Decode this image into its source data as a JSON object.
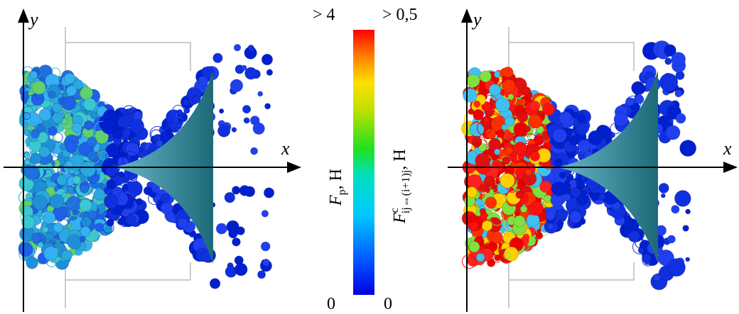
{
  "left_panel": {
    "axis_y": "y",
    "axis_x": "x"
  },
  "right_panel": {
    "axis_y": "y",
    "axis_x": "x"
  },
  "colorbar": {
    "left_max": "> 4",
    "left_min": "0",
    "right_max": "> 0,5",
    "right_min": "0",
    "left_label": {
      "main": "F",
      "sub": "p",
      "rest": ", H"
    },
    "right_label": {
      "main": "F",
      "sup": "c",
      "sub": "ij⇔(i+1)j",
      "rest": ", H"
    }
  }
}
